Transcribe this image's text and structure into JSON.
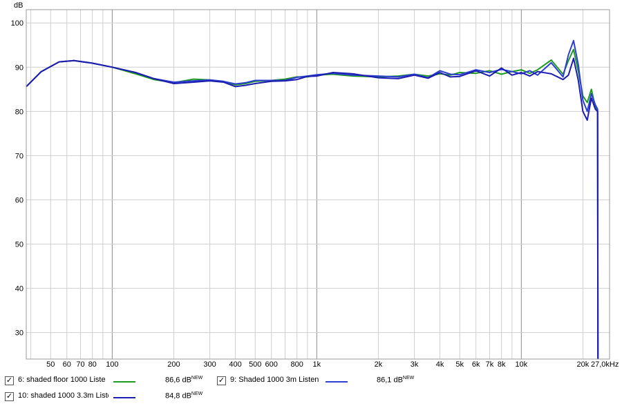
{
  "chart_data": {
    "type": "line",
    "ylabel": "dB",
    "x_unit_label": "27,0kHz",
    "x_scale": "log",
    "xlim": [
      38,
      27000
    ],
    "ylim": [
      24,
      103
    ],
    "grid": true,
    "y_ticks": [
      30,
      40,
      50,
      60,
      70,
      80,
      90,
      100
    ],
    "x_ticks": [
      {
        "v": 50,
        "label": "50"
      },
      {
        "v": 60,
        "label": "60"
      },
      {
        "v": 70,
        "label": "70"
      },
      {
        "v": 80,
        "label": "80"
      },
      {
        "v": 100,
        "label": "100"
      },
      {
        "v": 200,
        "label": "200"
      },
      {
        "v": 300,
        "label": "300"
      },
      {
        "v": 400,
        "label": "400"
      },
      {
        "v": 500,
        "label": "500"
      },
      {
        "v": 600,
        "label": "600"
      },
      {
        "v": 800,
        "label": "800"
      },
      {
        "v": 1000,
        "label": "1k"
      },
      {
        "v": 2000,
        "label": "2k"
      },
      {
        "v": 3000,
        "label": "3k"
      },
      {
        "v": 4000,
        "label": "4k"
      },
      {
        "v": 5000,
        "label": "5k"
      },
      {
        "v": 6000,
        "label": "6k"
      },
      {
        "v": 7000,
        "label": "7k"
      },
      {
        "v": 8000,
        "label": "8k"
      },
      {
        "v": 10000,
        "label": "10k"
      },
      {
        "v": 20000,
        "label": "20k"
      }
    ],
    "series": [
      {
        "name": "6: shaded floor 1000 Liste",
        "legend_value": "86,6 dB",
        "color": "#1f9a1f",
        "x": [
          38,
          45,
          55,
          65,
          80,
          100,
          130,
          160,
          200,
          250,
          300,
          350,
          400,
          450,
          500,
          600,
          700,
          800,
          900,
          1000,
          1200,
          1500,
          2000,
          2500,
          3000,
          3500,
          4000,
          4500,
          5000,
          6000,
          7000,
          8000,
          9000,
          10000,
          11000,
          12000,
          14000,
          16000,
          17000,
          18000,
          19000,
          20000,
          21000,
          22000,
          23000,
          23600,
          23700
        ],
        "y": [
          85.6,
          89.0,
          91.2,
          91.5,
          90.9,
          90.0,
          88.5,
          87.2,
          86.5,
          87.3,
          87.1,
          86.7,
          86.0,
          86.3,
          86.8,
          87.0,
          87.3,
          87.8,
          87.8,
          88.2,
          88.4,
          88.0,
          87.8,
          88.0,
          88.4,
          88.0,
          88.5,
          88.2,
          88.8,
          88.6,
          89.2,
          88.4,
          89.0,
          89.4,
          88.6,
          89.4,
          91.6,
          88.4,
          91.5,
          94.0,
          89.0,
          83.5,
          82.0,
          85.0,
          81.0,
          80.0,
          24.0
        ]
      },
      {
        "name": "9: Shaded 1000 3m Listen",
        "legend_value": "86,1 dB",
        "color": "#2a3fd0",
        "x": [
          38,
          45,
          55,
          65,
          80,
          100,
          130,
          160,
          200,
          250,
          300,
          350,
          400,
          450,
          500,
          600,
          700,
          800,
          900,
          1000,
          1200,
          1500,
          2000,
          2500,
          3000,
          3500,
          4000,
          4500,
          5000,
          6000,
          7000,
          8000,
          9000,
          10000,
          11000,
          12000,
          14000,
          16000,
          17000,
          18000,
          19000,
          20000,
          21000,
          22000,
          23000,
          23600,
          23700
        ],
        "y": [
          85.6,
          89.0,
          91.2,
          91.5,
          90.9,
          90.0,
          88.8,
          87.4,
          86.6,
          86.9,
          87.1,
          86.8,
          86.2,
          86.5,
          87.0,
          87.0,
          87.0,
          87.7,
          88.0,
          88.3,
          88.6,
          88.2,
          88.0,
          87.8,
          88.4,
          87.6,
          89.2,
          88.4,
          88.3,
          89.4,
          88.8,
          89.5,
          89.0,
          88.5,
          89.2,
          88.2,
          91.0,
          87.8,
          92.8,
          96.0,
          90.5,
          82.5,
          80.0,
          84.0,
          81.5,
          80.5,
          24.0
        ]
      },
      {
        "name": "10: shaded 1000 3.3m Liste",
        "legend_value": "84,8 dB",
        "color": "#1c1cb0",
        "x": [
          38,
          45,
          55,
          65,
          80,
          100,
          130,
          160,
          200,
          250,
          300,
          350,
          400,
          450,
          500,
          600,
          700,
          800,
          900,
          1000,
          1200,
          1500,
          2000,
          2500,
          3000,
          3500,
          4000,
          4500,
          5000,
          6000,
          7000,
          8000,
          9000,
          10000,
          11000,
          12000,
          14000,
          16000,
          17000,
          18000,
          19000,
          20000,
          21000,
          22000,
          23000,
          23600,
          23700
        ],
        "y": [
          85.6,
          89.0,
          91.2,
          91.5,
          90.9,
          90.0,
          88.8,
          87.4,
          86.3,
          86.6,
          86.9,
          86.6,
          85.6,
          85.9,
          86.3,
          86.8,
          86.9,
          87.2,
          87.9,
          88.0,
          88.8,
          88.5,
          87.6,
          87.4,
          88.2,
          87.5,
          88.8,
          87.8,
          87.9,
          89.2,
          88.0,
          89.8,
          88.2,
          88.8,
          88.0,
          89.0,
          88.5,
          87.2,
          88.2,
          92.0,
          87.0,
          80.0,
          78.0,
          83.0,
          80.5,
          80.0,
          24.0
        ]
      }
    ]
  }
}
